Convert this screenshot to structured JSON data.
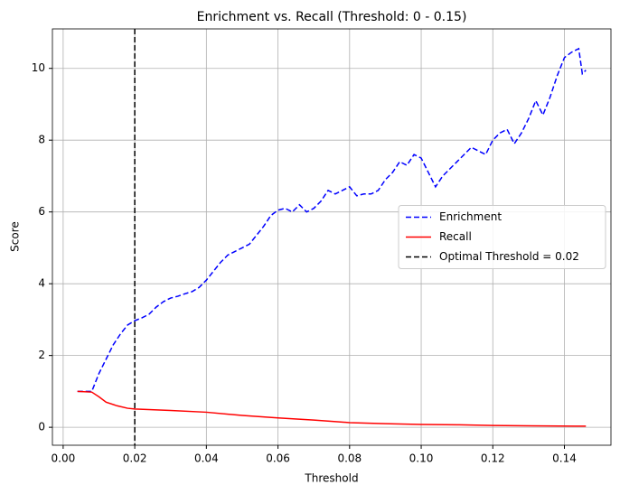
{
  "chart_data": {
    "type": "line",
    "title": "Enrichment vs. Recall (Threshold: 0 - 0.15)",
    "x_label": "Threshold",
    "y_label": "Score",
    "xlim": [
      -0.003,
      0.153
    ],
    "ylim": [
      -0.5,
      11.1
    ],
    "xticks": [
      {
        "value": 0,
        "label": "0.00"
      },
      {
        "value": 0.02,
        "label": "0.02"
      },
      {
        "value": 0.04,
        "label": "0.04"
      },
      {
        "value": 0.06,
        "label": "0.06"
      },
      {
        "value": 0.08,
        "label": "0.08"
      },
      {
        "value": 0.1,
        "label": "0.10"
      },
      {
        "value": 0.12,
        "label": "0.12"
      },
      {
        "value": 0.14,
        "label": "0.14"
      }
    ],
    "yticks": [
      0,
      2,
      4,
      6,
      8,
      10
    ],
    "grid": true,
    "legend": "center right",
    "series": [
      {
        "name": "Enrichment",
        "color": "#0000ff",
        "linestyle": "dashed",
        "x": [
          0.004,
          0.008,
          0.01,
          0.012,
          0.014,
          0.016,
          0.018,
          0.02,
          0.022,
          0.024,
          0.026,
          0.028,
          0.03,
          0.032,
          0.034,
          0.036,
          0.038,
          0.04,
          0.042,
          0.044,
          0.046,
          0.048,
          0.05,
          0.052,
          0.054,
          0.056,
          0.058,
          0.06,
          0.062,
          0.064,
          0.066,
          0.068,
          0.07,
          0.072,
          0.074,
          0.076,
          0.078,
          0.08,
          0.082,
          0.084,
          0.086,
          0.088,
          0.09,
          0.092,
          0.094,
          0.096,
          0.098,
          0.1,
          0.102,
          0.104,
          0.106,
          0.108,
          0.11,
          0.112,
          0.114,
          0.116,
          0.118,
          0.12,
          0.122,
          0.124,
          0.126,
          0.128,
          0.13,
          0.132,
          0.134,
          0.136,
          0.138,
          0.14,
          0.142,
          0.144,
          0.145,
          0.146
        ],
        "values": [
          1.0,
          1.0,
          1.5,
          1.9,
          2.3,
          2.6,
          2.85,
          2.97,
          3.05,
          3.15,
          3.35,
          3.5,
          3.6,
          3.65,
          3.72,
          3.78,
          3.9,
          4.1,
          4.35,
          4.6,
          4.8,
          4.9,
          5.0,
          5.1,
          5.35,
          5.6,
          5.9,
          6.05,
          6.1,
          6.0,
          6.2,
          6.0,
          6.1,
          6.3,
          6.6,
          6.5,
          6.6,
          6.7,
          6.45,
          6.5,
          6.5,
          6.6,
          6.9,
          7.1,
          7.4,
          7.3,
          7.6,
          7.5,
          7.1,
          6.7,
          7.0,
          7.2,
          7.4,
          7.6,
          7.8,
          7.7,
          7.6,
          8.0,
          8.2,
          8.3,
          7.9,
          8.2,
          8.6,
          9.1,
          8.7,
          9.2,
          9.8,
          10.3,
          10.45,
          10.55,
          9.85,
          9.95
        ]
      },
      {
        "name": "Recall",
        "color": "#ff0000",
        "linestyle": "solid",
        "x": [
          0.004,
          0.008,
          0.01,
          0.012,
          0.015,
          0.018,
          0.02,
          0.03,
          0.04,
          0.05,
          0.06,
          0.07,
          0.08,
          0.09,
          0.1,
          0.11,
          0.12,
          0.13,
          0.146
        ],
        "values": [
          1.0,
          0.98,
          0.85,
          0.7,
          0.6,
          0.53,
          0.51,
          0.47,
          0.42,
          0.33,
          0.26,
          0.2,
          0.13,
          0.1,
          0.08,
          0.07,
          0.05,
          0.04,
          0.03
        ]
      }
    ],
    "vline": {
      "name": "Optimal Threshold = 0.02",
      "color": "#000000",
      "linestyle": "dashed",
      "x": 0.02
    }
  }
}
